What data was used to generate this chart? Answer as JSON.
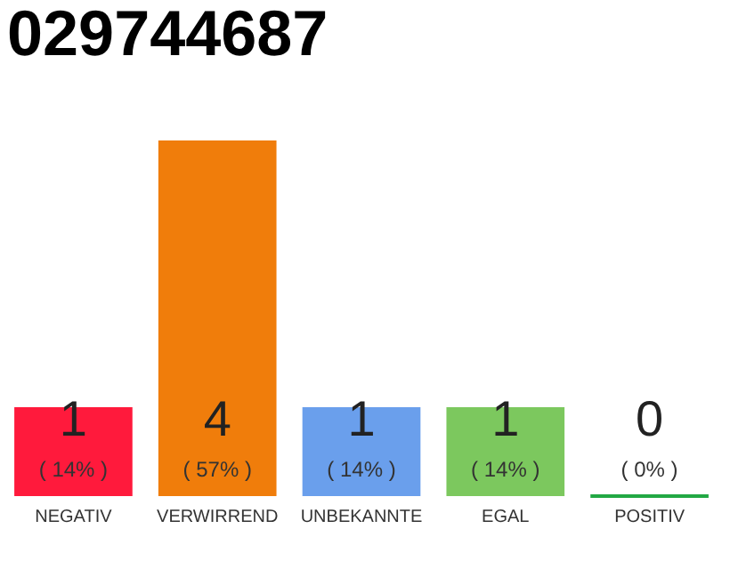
{
  "chart_data": {
    "type": "bar",
    "title": "029744687",
    "categories": [
      "NEGATIV",
      "VERWIRREND",
      "UNBEKANNTE",
      "EGAL",
      "POSITIV"
    ],
    "values": [
      1,
      4,
      1,
      1,
      0
    ],
    "colors": [
      "#ff1a3c",
      "#f07d0b",
      "#6a9fec",
      "#7cc85e",
      "#22a844"
    ],
    "data_labels": true,
    "annotations": [
      "( 14% )",
      "( 57% )",
      "( 14% )",
      "( 14% )",
      "( 0% )"
    ],
    "grid": false
  }
}
